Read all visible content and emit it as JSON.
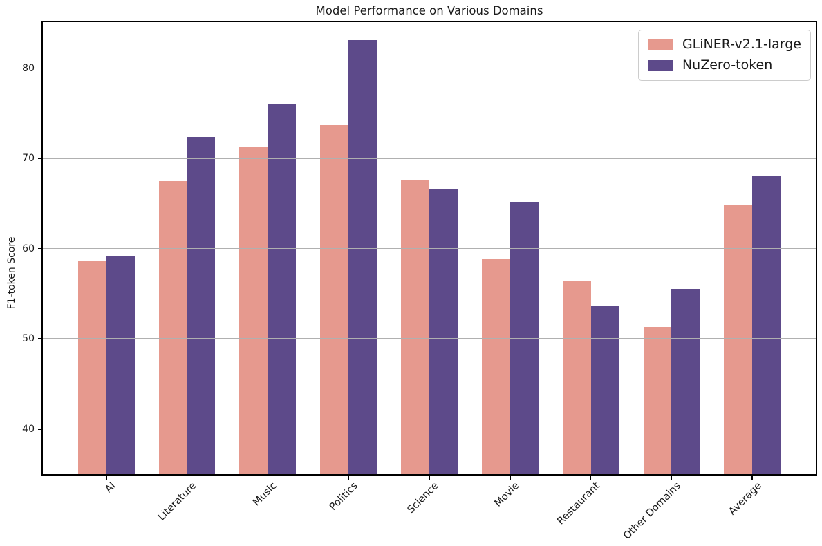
{
  "chart_data": {
    "type": "bar",
    "title": "Model Performance on Various Domains",
    "ylabel": "F1-token Score",
    "xlabel": "",
    "categories": [
      "AI",
      "Literature",
      "Music",
      "Politics",
      "Science",
      "Movie",
      "Restaurant",
      "Other Domains",
      "Average"
    ],
    "series": [
      {
        "name": "GLiNER-v2.1-large",
        "color": "#e6998e",
        "values": [
          58.6,
          67.5,
          71.3,
          73.7,
          67.6,
          58.8,
          56.4,
          51.3,
          64.9
        ]
      },
      {
        "name": "NuZero-token",
        "color": "#5d4a8a",
        "values": [
          59.1,
          72.4,
          76.0,
          83.1,
          66.6,
          65.2,
          53.6,
          55.5,
          68.0
        ]
      }
    ],
    "yticks": [
      40,
      50,
      60,
      70,
      80
    ],
    "ylim": [
      35,
      85.1
    ],
    "xlim": [
      -0.785,
      8.785
    ],
    "bar_width": 0.35,
    "grid": true,
    "grid_color": "#b0b0b0",
    "legend_position": "upper right",
    "background": "#ffffff",
    "text_color": "#1a1a1a"
  }
}
